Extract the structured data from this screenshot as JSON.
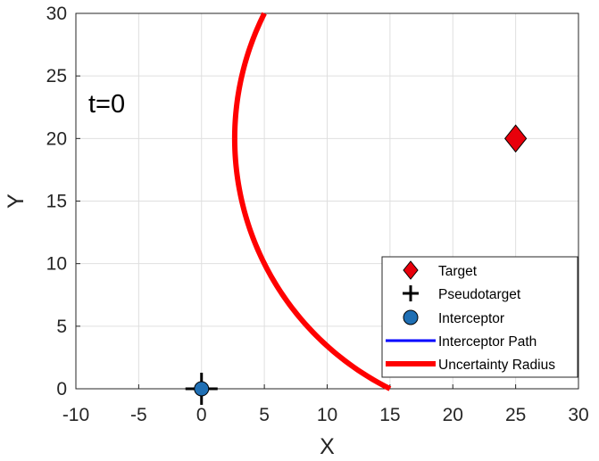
{
  "chart_data": {
    "type": "scatter",
    "xlabel": "X",
    "ylabel": "Y",
    "xlim": [
      -10,
      30
    ],
    "ylim": [
      0,
      30
    ],
    "xticks": [
      "-10",
      "-5",
      "0",
      "5",
      "10",
      "15",
      "20",
      "25",
      "30"
    ],
    "yticks": [
      "0",
      "5",
      "10",
      "15",
      "20",
      "25",
      "30"
    ],
    "grid": true,
    "annotation": "t=0",
    "legend_position": "bottom-right",
    "series": [
      {
        "name": "Target",
        "marker": "diamond",
        "color": "#e8000b",
        "points": [
          [
            25,
            20
          ]
        ]
      },
      {
        "name": "Pseudotarget",
        "marker": "plus",
        "color": "#000000",
        "points": [
          [
            0,
            0
          ]
        ]
      },
      {
        "name": "Interceptor",
        "marker": "circle",
        "color": "#1f6fb4",
        "points": [
          [
            0,
            0
          ]
        ]
      },
      {
        "name": "Interceptor Path",
        "marker": "line",
        "color": "#0000ff",
        "points": []
      },
      {
        "name": "Uncertainty Radius",
        "marker": "line",
        "color": "#ff0000",
        "center": [
          25,
          20
        ],
        "radius": 22.36,
        "points": [
          [
            15,
            0
          ],
          [
            10,
            5
          ],
          [
            6.9,
            10
          ],
          [
            4.3,
            14.5
          ],
          [
            2.6,
            20
          ],
          [
            2.9,
            24.5
          ],
          [
            5,
            30
          ]
        ]
      }
    ]
  }
}
